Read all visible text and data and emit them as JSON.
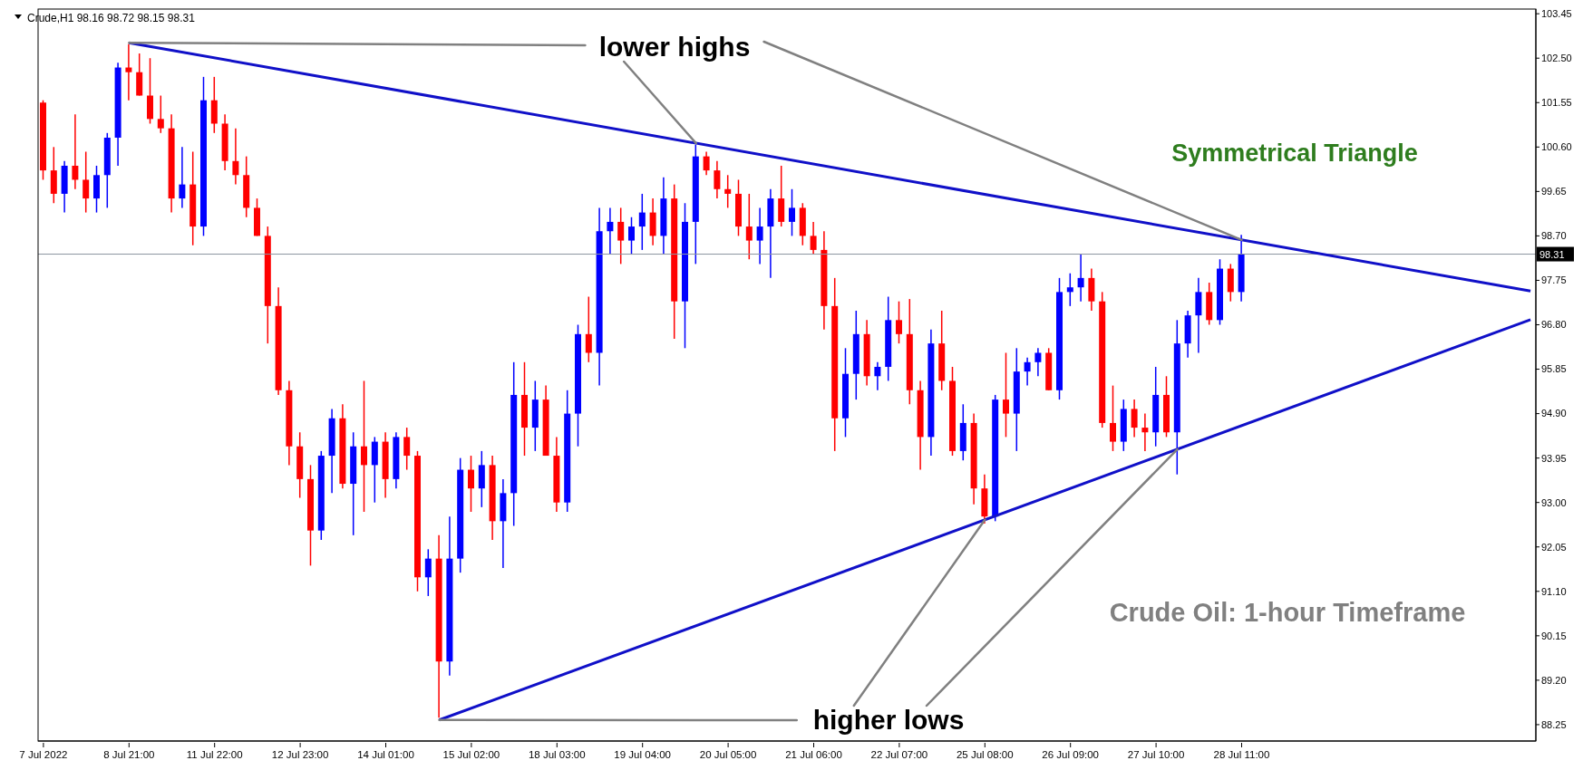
{
  "chart_data": {
    "type": "candlestick",
    "title": "Symmetrical Triangle",
    "subtitle": "Crude Oil: 1-hour Timeframe",
    "annotations": [
      "Crude,H1 98.16 98.72 98.15 98.31",
      {
        "text": "lower highs",
        "x": "8 Jul 21:00",
        "y": 102.83
      },
      {
        "text": "higher lows",
        "x": "25 Jul 08:00",
        "y": 92.63
      }
    ],
    "categories": [
      "7 Jul 2022",
      null,
      null,
      null,
      null,
      null,
      null,
      null,
      "8 Jul 21:00",
      null,
      null,
      null,
      null,
      null,
      null,
      null,
      "11 Jul 22:00",
      null,
      null,
      null,
      null,
      null,
      null,
      null,
      "12 Jul 23:00",
      null,
      null,
      null,
      null,
      null,
      null,
      null,
      "14 Jul 01:00",
      null,
      null,
      null,
      null,
      null,
      null,
      null,
      "15 Jul 02:00",
      null,
      null,
      null,
      null,
      null,
      null,
      null,
      "18 Jul 03:00",
      null,
      null,
      null,
      null,
      null,
      null,
      null,
      "19 Jul 04:00",
      null,
      null,
      null,
      null,
      null,
      null,
      null,
      "20 Jul 05:00",
      null,
      null,
      null,
      null,
      null,
      null,
      null,
      "21 Jul 06:00",
      null,
      null,
      null,
      null,
      null,
      null,
      null,
      "22 Jul 07:00",
      null,
      null,
      null,
      null,
      null,
      null,
      null,
      "25 Jul 08:00",
      null,
      null,
      null,
      null,
      null,
      null,
      null,
      "26 Jul 09:00",
      null,
      null,
      null,
      null,
      null,
      null,
      null,
      "27 Jul 10:00",
      null,
      null,
      null,
      null,
      null,
      null,
      null,
      "28 Jul 11:00",
      null,
      null,
      null,
      null,
      null,
      null,
      null,
      null,
      null,
      null,
      null,
      null,
      null,
      null,
      null,
      null,
      null,
      null,
      null,
      null,
      null,
      null,
      null,
      null,
      null,
      null,
      null
    ],
    "ohlc": [
      [
        101.55,
        101.6,
        99.9,
        100.1
      ],
      [
        100.1,
        100.6,
        99.4,
        99.6
      ],
      [
        99.6,
        100.3,
        99.2,
        100.2
      ],
      [
        100.2,
        101.3,
        99.7,
        99.9
      ],
      [
        99.9,
        100.5,
        99.2,
        99.5
      ],
      [
        99.5,
        100.2,
        99.2,
        100.0
      ],
      [
        100.0,
        100.9,
        99.3,
        100.8
      ],
      [
        100.8,
        102.4,
        100.2,
        102.3
      ],
      [
        102.3,
        102.8,
        101.6,
        102.2
      ],
      [
        102.2,
        102.6,
        101.7,
        101.7
      ],
      [
        101.7,
        102.5,
        101.1,
        101.2
      ],
      [
        101.2,
        101.7,
        100.9,
        101.0
      ],
      [
        101.0,
        101.3,
        99.2,
        99.5
      ],
      [
        99.5,
        100.6,
        99.3,
        99.8
      ],
      [
        99.8,
        100.5,
        98.5,
        98.9
      ],
      [
        98.9,
        102.1,
        98.7,
        101.6
      ],
      [
        101.6,
        102.1,
        100.9,
        101.1
      ],
      [
        101.1,
        101.3,
        100.1,
        100.3
      ],
      [
        100.3,
        101.0,
        99.8,
        100.0
      ],
      [
        100.0,
        100.4,
        99.1,
        99.3
      ],
      [
        99.3,
        99.5,
        98.7,
        98.7
      ],
      [
        98.7,
        98.9,
        96.4,
        97.2
      ],
      [
        97.2,
        97.6,
        95.3,
        95.4
      ],
      [
        95.4,
        95.6,
        93.8,
        94.2
      ],
      [
        94.2,
        94.5,
        93.1,
        93.5
      ],
      [
        93.5,
        93.8,
        91.65,
        92.4
      ],
      [
        92.4,
        94.1,
        92.2,
        94.0
      ],
      [
        94.0,
        95.0,
        93.2,
        94.8
      ],
      [
        94.8,
        95.1,
        93.3,
        93.4
      ],
      [
        93.4,
        94.5,
        92.3,
        94.2
      ],
      [
        94.2,
        95.6,
        92.8,
        93.8
      ],
      [
        93.8,
        94.4,
        93.0,
        94.3
      ],
      [
        94.3,
        94.5,
        93.1,
        93.5
      ],
      [
        93.5,
        94.5,
        93.3,
        94.4
      ],
      [
        94.4,
        94.6,
        93.7,
        94.0
      ],
      [
        94.0,
        94.1,
        91.1,
        91.4
      ],
      [
        91.4,
        92.0,
        91.0,
        91.8
      ],
      [
        91.8,
        92.3,
        88.4,
        89.6
      ],
      [
        89.6,
        92.7,
        89.3,
        91.8
      ],
      [
        91.8,
        93.95,
        91.5,
        93.7
      ],
      [
        93.7,
        94.0,
        92.8,
        93.3
      ],
      [
        93.3,
        94.1,
        92.9,
        93.8
      ],
      [
        93.8,
        94.0,
        92.2,
        92.6
      ],
      [
        92.6,
        93.5,
        91.6,
        93.2
      ],
      [
        93.2,
        96.0,
        92.5,
        95.3
      ],
      [
        95.3,
        96.0,
        94.0,
        94.6
      ],
      [
        94.6,
        95.6,
        94.1,
        95.2
      ],
      [
        95.2,
        95.5,
        94.0,
        94.0
      ],
      [
        94.0,
        94.4,
        92.8,
        93.0
      ],
      [
        93.0,
        95.4,
        92.8,
        94.9
      ],
      [
        94.9,
        96.8,
        94.2,
        96.6
      ],
      [
        96.6,
        97.4,
        96.0,
        96.2
      ],
      [
        96.2,
        99.3,
        95.5,
        98.8
      ],
      [
        98.8,
        99.3,
        98.3,
        99.0
      ],
      [
        99.0,
        99.3,
        98.1,
        98.6
      ],
      [
        98.6,
        99.1,
        98.3,
        98.9
      ],
      [
        98.9,
        99.6,
        98.4,
        99.2
      ],
      [
        99.2,
        99.5,
        98.5,
        98.7
      ],
      [
        98.7,
        99.95,
        98.3,
        99.5
      ],
      [
        99.5,
        99.8,
        96.5,
        97.3
      ],
      [
        97.3,
        99.4,
        96.3,
        99.0
      ],
      [
        99.0,
        100.65,
        98.1,
        100.4
      ],
      [
        100.4,
        100.5,
        100.0,
        100.1
      ],
      [
        100.1,
        100.3,
        99.5,
        99.7
      ],
      [
        99.7,
        100.0,
        99.3,
        99.6
      ],
      [
        99.6,
        99.9,
        98.7,
        98.9
      ],
      [
        98.9,
        99.6,
        98.2,
        98.6
      ],
      [
        98.6,
        99.3,
        98.1,
        98.9
      ],
      [
        98.9,
        99.7,
        97.8,
        99.5
      ],
      [
        99.5,
        100.2,
        98.9,
        99.0
      ],
      [
        99.0,
        99.7,
        98.7,
        99.3
      ],
      [
        99.3,
        99.4,
        98.5,
        98.7
      ],
      [
        98.7,
        99.0,
        98.3,
        98.4
      ],
      [
        98.4,
        98.8,
        96.7,
        97.2
      ],
      [
        97.2,
        97.8,
        94.1,
        94.8
      ],
      [
        94.8,
        96.3,
        94.4,
        95.75
      ],
      [
        95.75,
        97.1,
        95.2,
        96.6
      ],
      [
        96.6,
        96.9,
        95.5,
        95.7
      ],
      [
        95.7,
        96.0,
        95.4,
        95.9
      ],
      [
        95.9,
        97.4,
        95.6,
        96.9
      ],
      [
        96.9,
        97.3,
        96.4,
        96.6
      ],
      [
        96.6,
        97.35,
        95.1,
        95.4
      ],
      [
        95.4,
        95.6,
        93.7,
        94.4
      ],
      [
        94.4,
        96.7,
        94.0,
        96.4
      ],
      [
        96.4,
        97.1,
        95.4,
        95.6
      ],
      [
        95.6,
        95.9,
        94.0,
        94.1
      ],
      [
        94.1,
        95.1,
        93.9,
        94.7
      ],
      [
        94.7,
        94.9,
        92.96,
        93.3
      ],
      [
        93.3,
        93.6,
        92.55,
        92.7
      ],
      [
        92.7,
        95.3,
        92.6,
        95.2
      ],
      [
        95.2,
        96.2,
        94.4,
        94.9
      ],
      [
        94.9,
        96.3,
        94.1,
        95.8
      ],
      [
        95.8,
        96.1,
        95.5,
        96.0
      ],
      [
        96.0,
        96.3,
        95.7,
        96.2
      ],
      [
        96.2,
        96.3,
        95.4,
        95.4
      ],
      [
        95.4,
        97.8,
        95.2,
        97.5
      ],
      [
        97.5,
        97.9,
        97.2,
        97.6
      ],
      [
        97.6,
        98.3,
        97.3,
        97.8
      ],
      [
        97.8,
        98.0,
        97.1,
        97.3
      ],
      [
        97.3,
        97.5,
        94.6,
        94.7
      ],
      [
        94.7,
        95.5,
        94.1,
        94.3
      ],
      [
        94.3,
        95.2,
        94.1,
        95.0
      ],
      [
        95.0,
        95.2,
        94.4,
        94.6
      ],
      [
        94.6,
        94.9,
        94.1,
        94.5
      ],
      [
        94.5,
        95.9,
        94.2,
        95.3
      ],
      [
        95.3,
        95.7,
        94.4,
        94.5
      ],
      [
        94.5,
        96.9,
        93.6,
        96.4
      ],
      [
        96.4,
        97.1,
        96.1,
        97.0
      ],
      [
        97.0,
        97.8,
        96.2,
        97.5
      ],
      [
        97.5,
        97.7,
        96.8,
        96.9
      ],
      [
        96.9,
        98.2,
        96.8,
        98.0
      ],
      [
        98.0,
        98.1,
        97.3,
        97.5
      ],
      [
        97.5,
        98.72,
        97.3,
        98.31
      ],
      null,
      null,
      null,
      null,
      null,
      null,
      null,
      null,
      null,
      null,
      null,
      null,
      null,
      null,
      null,
      null,
      null,
      null,
      null,
      null,
      null,
      null,
      null,
      null,
      null,
      null,
      null
    ],
    "series": [
      {
        "type": "line",
        "color": "#1010c8",
        "values": [
          null,
          null,
          null,
          null,
          null,
          null,
          null,
          null,
          102.83,
          null,
          null,
          null,
          null,
          null,
          null,
          null,
          null,
          null,
          null,
          null,
          null,
          null,
          null,
          null,
          null,
          null,
          null,
          null,
          null,
          null,
          null,
          null,
          null,
          null,
          null,
          null,
          null,
          null,
          null,
          null,
          null,
          null,
          null,
          null,
          null,
          null,
          null,
          null,
          null,
          null,
          null,
          null,
          null,
          null,
          null,
          null,
          null,
          null,
          null,
          null,
          null,
          null,
          null,
          null,
          null,
          null,
          null,
          null,
          null,
          null,
          null,
          null,
          null,
          null,
          null,
          null,
          null,
          null,
          null,
          null,
          null,
          null,
          null,
          null,
          null,
          null,
          null,
          null,
          null,
          null,
          null,
          null,
          null,
          null,
          null,
          null,
          null,
          null,
          null,
          null,
          null,
          null,
          null,
          null,
          null,
          null,
          null,
          null,
          null,
          null,
          null,
          null,
          null,
          null,
          null,
          null,
          null,
          null,
          null,
          null,
          null,
          null,
          null,
          null,
          null,
          null,
          null,
          null,
          null,
          null,
          null,
          null,
          null,
          null,
          null,
          null,
          null,
          null,
          null,
          97.52
        ]
      },
      {
        "type": "line",
        "color": "#1010c8",
        "values": [
          null,
          null,
          null,
          null,
          null,
          null,
          null,
          null,
          null,
          null,
          null,
          null,
          null,
          null,
          null,
          null,
          null,
          null,
          null,
          null,
          null,
          null,
          null,
          null,
          null,
          null,
          null,
          null,
          null,
          null,
          null,
          null,
          null,
          null,
          null,
          null,
          null,
          88.35,
          null,
          null,
          null,
          null,
          null,
          null,
          null,
          null,
          null,
          null,
          null,
          null,
          null,
          null,
          null,
          null,
          null,
          null,
          null,
          null,
          null,
          null,
          null,
          null,
          null,
          null,
          null,
          null,
          null,
          null,
          null,
          null,
          null,
          null,
          null,
          null,
          null,
          null,
          null,
          null,
          null,
          null,
          null,
          null,
          null,
          null,
          null,
          null,
          null,
          null,
          null,
          null,
          null,
          null,
          null,
          null,
          null,
          null,
          null,
          null,
          null,
          null,
          null,
          null,
          null,
          null,
          null,
          null,
          null,
          null,
          null,
          null,
          null,
          null,
          null,
          null,
          null,
          null,
          null,
          null,
          null,
          null,
          null,
          null,
          null,
          null,
          null,
          null,
          null,
          null,
          null,
          null,
          null,
          null,
          null,
          null,
          null,
          null,
          null,
          null,
          null,
          96.91
        ]
      }
    ],
    "ylim": [
      87.9,
      103.55
    ],
    "yticks": [
      {
        "value": 88.25,
        "label": "88.25"
      },
      {
        "value": 89.2,
        "label": "89.20"
      },
      {
        "value": 90.15,
        "label": "90.15"
      },
      {
        "value": 91.1,
        "label": "91.10"
      },
      {
        "value": 92.05,
        "label": "92.05"
      },
      {
        "value": 93.0,
        "label": "93.00"
      },
      {
        "value": 93.95,
        "label": "93.95"
      },
      {
        "value": 94.9,
        "label": "94.90"
      },
      {
        "value": 95.85,
        "label": "95.85"
      },
      {
        "value": 96.8,
        "label": "96.80"
      },
      {
        "value": 97.75,
        "label": "97.75"
      },
      {
        "value": 98.7,
        "label": "98.70"
      },
      {
        "value": 99.65,
        "label": "99.65"
      },
      {
        "value": 100.6,
        "label": "100.60"
      },
      {
        "value": 101.55,
        "label": "101.55"
      },
      {
        "value": 102.5,
        "label": "102.50"
      },
      {
        "value": 103.45,
        "label": "103.45"
      }
    ],
    "ref_lines": [
      {
        "axis": "y",
        "value": 98.31,
        "label": "98.31",
        "color": "#8c94a0"
      }
    ]
  }
}
